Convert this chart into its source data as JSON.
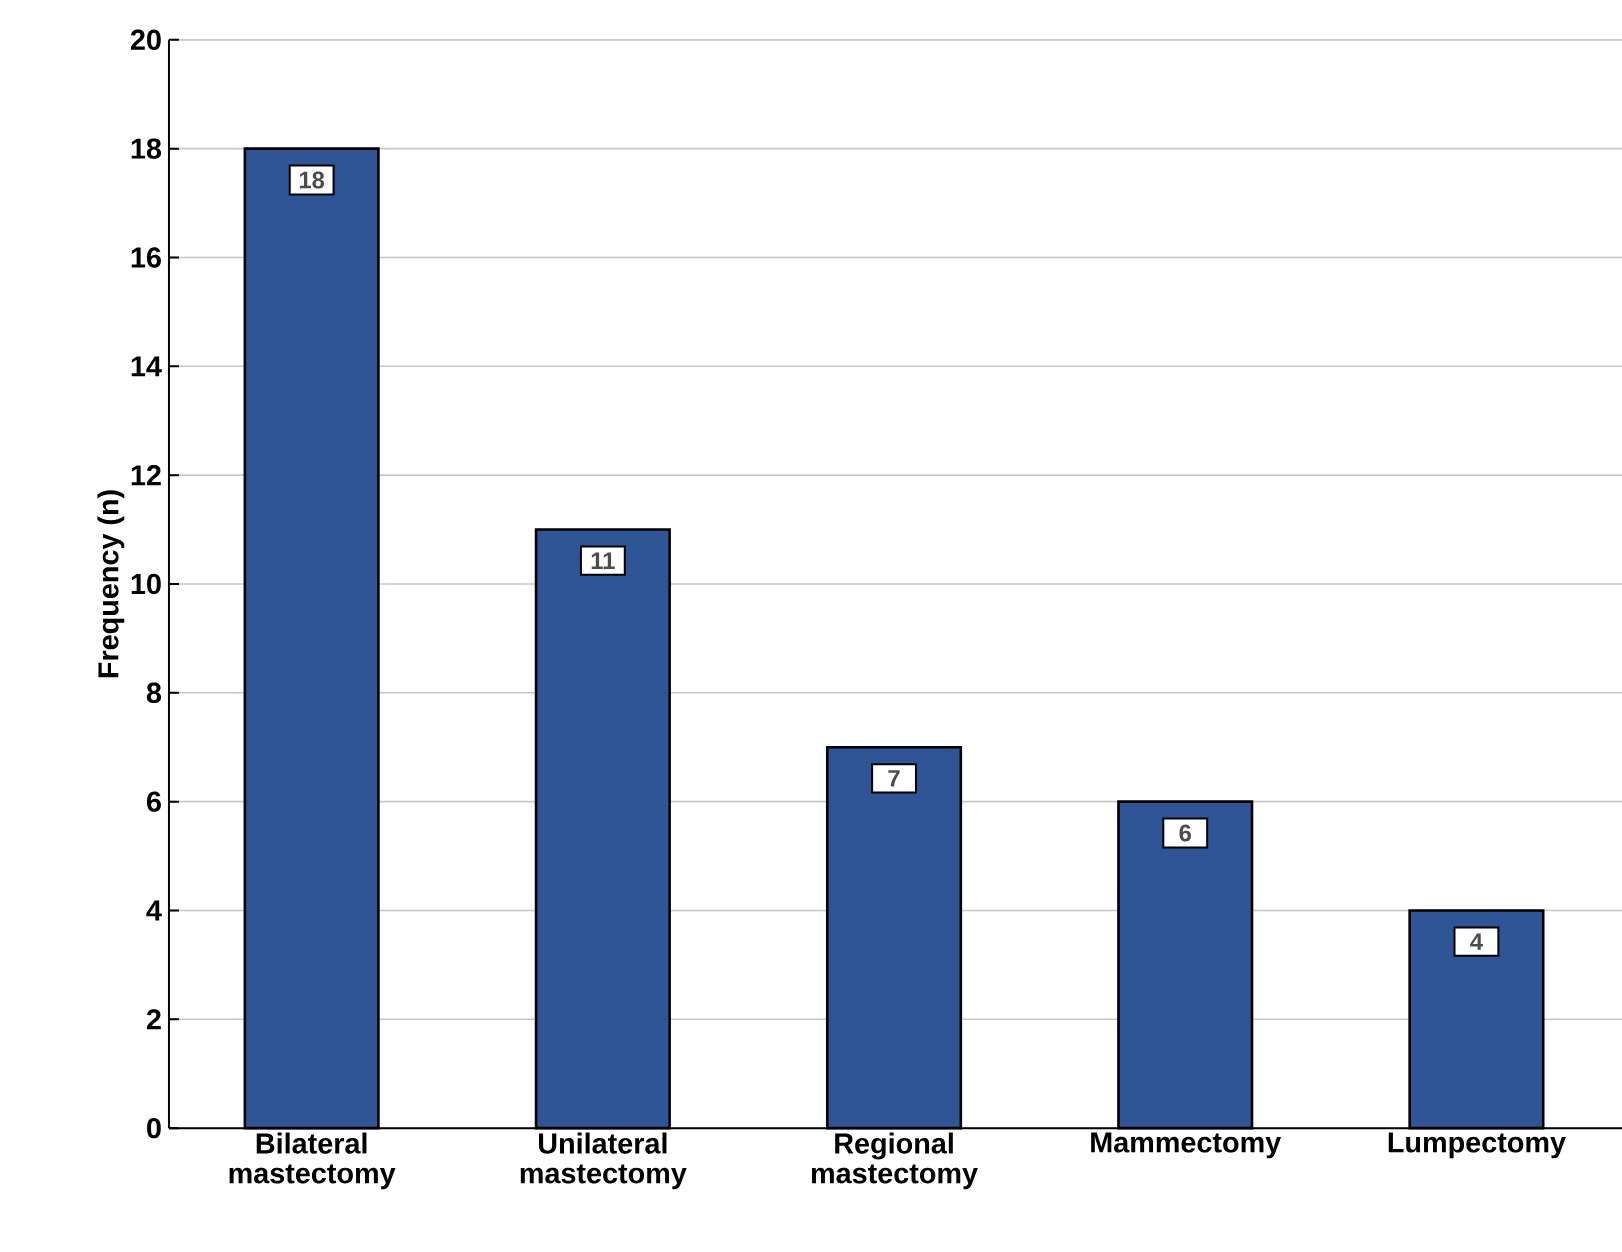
{
  "chart_data": {
    "type": "bar",
    "ylabel": "Frequency (n)",
    "categories": [
      "Bilateral mastectomy",
      "Unilateral mastectomy",
      "Regional mastectomy",
      "Mammectomy",
      "Lumpectomy"
    ],
    "values": [
      18,
      11,
      7,
      6,
      4
    ],
    "color": "#2f5597",
    "ylim": [
      0,
      20
    ],
    "yticks": [
      0,
      2,
      4,
      6,
      8,
      10,
      12,
      14,
      16,
      18,
      20
    ],
    "grid": "y",
    "data_labels": true
  }
}
